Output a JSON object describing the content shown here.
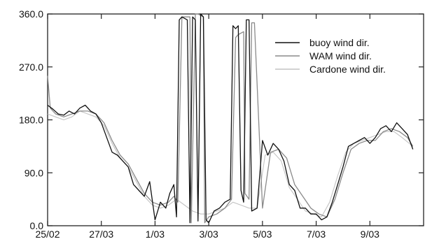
{
  "chart_data": {
    "type": "line",
    "title": "",
    "xlabel": "",
    "ylabel": "",
    "xlim": [
      0,
      14
    ],
    "ylim": [
      0,
      360
    ],
    "grid": false,
    "legend_position": "top-right",
    "x_ticks": [
      {
        "value": 0,
        "label": "25/02"
      },
      {
        "value": 2,
        "label": "27/03"
      },
      {
        "value": 4,
        "label": "1/03"
      },
      {
        "value": 6,
        "label": "3/03"
      },
      {
        "value": 8,
        "label": "5/03"
      },
      {
        "value": 10,
        "label": "7/03"
      },
      {
        "value": 12,
        "label": "9/03"
      }
    ],
    "y_ticks": [
      {
        "value": 0,
        "label": "0.0"
      },
      {
        "value": 90,
        "label": "90.0"
      },
      {
        "value": 180,
        "label": "180.0"
      },
      {
        "value": 270,
        "label": "270.0"
      },
      {
        "value": 360,
        "label": "360.0"
      }
    ],
    "series": [
      {
        "name": "buoy wind dir.",
        "color": "#111111",
        "x": [
          0,
          0.2,
          0.4,
          0.6,
          0.8,
          1.0,
          1.2,
          1.4,
          1.6,
          1.8,
          2.0,
          2.2,
          2.4,
          2.6,
          2.8,
          3.0,
          3.2,
          3.4,
          3.6,
          3.8,
          4.0,
          4.2,
          4.4,
          4.55,
          4.7,
          4.8,
          4.9,
          5.0,
          5.2,
          5.3,
          5.4,
          5.5,
          5.6,
          5.7,
          5.8,
          5.9,
          6.0,
          6.2,
          6.4,
          6.6,
          6.8,
          6.9,
          7.0,
          7.1,
          7.2,
          7.3,
          7.4,
          7.5,
          7.6,
          7.8,
          8.0,
          8.2,
          8.4,
          8.6,
          8.8,
          9.0,
          9.2,
          9.4,
          9.6,
          9.8,
          10.0,
          10.2,
          10.4,
          10.6,
          10.8,
          11.0,
          11.2,
          11.4,
          11.6,
          11.8,
          12.0,
          12.2,
          12.4,
          12.6,
          12.8,
          13.0,
          13.2,
          13.4,
          13.6
        ],
        "y": [
          205,
          198,
          190,
          188,
          195,
          190,
          200,
          205,
          195,
          190,
          175,
          150,
          125,
          120,
          110,
          100,
          70,
          60,
          50,
          75,
          10,
          40,
          30,
          55,
          70,
          15,
          350,
          355,
          350,
          5,
          355,
          350,
          8,
          360,
          355,
          10,
          5,
          25,
          30,
          40,
          45,
          340,
          335,
          340,
          60,
          40,
          350,
          350,
          25,
          30,
          145,
          120,
          140,
          130,
          110,
          70,
          60,
          30,
          30,
          20,
          20,
          10,
          15,
          40,
          70,
          100,
          135,
          140,
          145,
          150,
          140,
          150,
          165,
          170,
          160,
          175,
          165,
          155,
          130
        ]
      },
      {
        "name": "WAM wind dir.",
        "color": "#8a8a8a",
        "x": [
          0,
          0.1,
          0.3,
          0.6,
          0.9,
          1.2,
          1.5,
          1.8,
          2.1,
          2.4,
          2.7,
          3.0,
          3.3,
          3.6,
          3.9,
          4.2,
          4.5,
          4.7,
          4.85,
          5.0,
          5.3,
          5.35,
          5.5,
          5.6,
          5.8,
          5.85,
          6.0,
          6.3,
          6.6,
          6.85,
          7.0,
          7.1,
          7.3,
          7.35,
          7.5,
          7.6,
          7.7,
          8.0,
          8.3,
          8.6,
          8.9,
          9.2,
          9.5,
          9.8,
          10.1,
          10.4,
          10.7,
          11.0,
          11.3,
          11.6,
          11.9,
          12.2,
          12.5,
          12.8,
          13.1,
          13.4,
          13.6
        ],
        "y": [
          255,
          200,
          190,
          185,
          190,
          195,
          195,
          190,
          175,
          145,
          120,
          105,
          80,
          55,
          40,
          35,
          40,
          50,
          40,
          355,
          355,
          5,
          360,
          360,
          355,
          5,
          15,
          20,
          30,
          45,
          320,
          325,
          330,
          55,
          45,
          345,
          345,
          30,
          125,
          130,
          115,
          70,
          50,
          30,
          20,
          15,
          45,
          90,
          130,
          140,
          145,
          145,
          160,
          165,
          160,
          150,
          135
        ]
      },
      {
        "name": "Cardone wind dir.",
        "color": "#c4c4c4",
        "x": [
          0,
          0.3,
          0.6,
          0.9,
          1.2,
          1.5,
          1.8,
          2.1,
          2.4,
          2.7,
          3.0,
          3.3,
          3.6,
          3.9,
          4.2,
          4.5,
          4.8,
          5.1,
          5.4,
          5.7,
          6.0,
          6.3,
          6.6,
          6.9,
          7.2,
          7.5,
          7.8,
          8.1,
          8.4,
          8.7,
          9.0,
          9.3,
          9.6,
          9.9,
          10.2,
          10.5,
          10.8,
          11.1,
          11.4,
          11.7,
          12.0,
          12.3,
          12.6,
          12.9,
          13.2,
          13.6
        ],
        "y": [
          190,
          185,
          180,
          185,
          195,
          190,
          185,
          170,
          140,
          115,
          100,
          75,
          50,
          35,
          30,
          35,
          45,
          35,
          25,
          20,
          20,
          25,
          30,
          40,
          35,
          30,
          30,
          120,
          125,
          110,
          65,
          45,
          25,
          20,
          15,
          40,
          85,
          125,
          140,
          145,
          150,
          155,
          160,
          160,
          150,
          135
        ]
      }
    ]
  }
}
